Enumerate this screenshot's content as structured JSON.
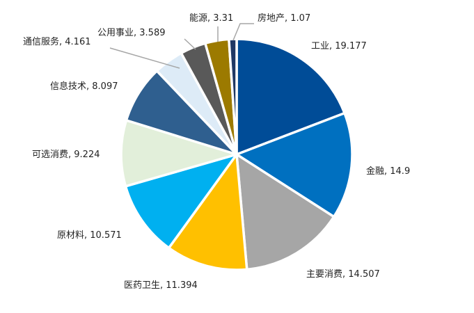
{
  "chart_data": {
    "type": "pie",
    "title": "",
    "legend": "none",
    "slices": [
      {
        "label": "工业",
        "value": 19.177,
        "color": "#004C97"
      },
      {
        "label": "金融",
        "value": 14.9,
        "color": "#0070C0"
      },
      {
        "label": "主要消费",
        "value": 14.507,
        "color": "#A6A6A6"
      },
      {
        "label": "医药卫生",
        "value": 11.394,
        "color": "#FFC000"
      },
      {
        "label": "原材料",
        "value": 10.571,
        "color": "#00B0F0"
      },
      {
        "label": "可选消费",
        "value": 9.224,
        "color": "#E2EFDA"
      },
      {
        "label": "信息技术",
        "value": 8.097,
        "color": "#2F5F8F"
      },
      {
        "label": "通信服务",
        "value": 4.161,
        "color": "#DDEBF7"
      },
      {
        "label": "公用事业",
        "value": 3.589,
        "color": "#595959"
      },
      {
        "label": "能源",
        "value": 3.31,
        "color": "#9C7A00"
      },
      {
        "label": "房地产",
        "value": 1.07,
        "color": "#1F3864"
      }
    ],
    "data_labels": [
      "工业, 19.177",
      "金融, 14.9",
      "主要消费, 14.507",
      "医药卫生, 11.394",
      "原材料, 10.571",
      "可选消费, 9.224",
      "信息技术, 8.097",
      "通信服务, 4.161",
      "公用事业, 3.589",
      "能源, 3.31",
      "房地产, 1.07"
    ],
    "leader_line_color": "#A6A6A6"
  }
}
